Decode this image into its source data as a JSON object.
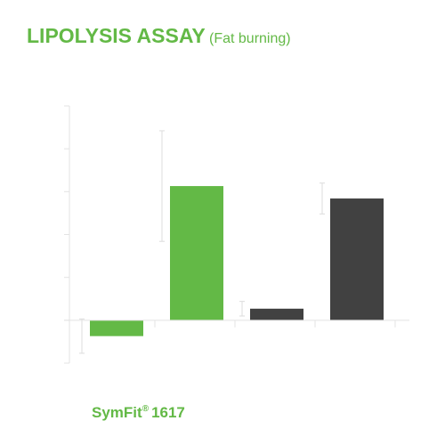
{
  "chart_data": {
    "type": "bar",
    "title": "LIPOLYSIS ASSAY",
    "subtitle": "(Fat burning)",
    "values": [
      -0.37,
      3.13,
      0.27,
      2.84
    ],
    "errors": [
      0.4,
      1.29,
      0.17,
      0.36
    ],
    "colors": [
      "#63b946",
      "#63b946",
      "#414141",
      "#414141"
    ],
    "ylim": [
      -1,
      5
    ],
    "yticks": [
      -1,
      0,
      1,
      2,
      3,
      4,
      5
    ]
  },
  "footer": {
    "brand": "SymFit",
    "mark": "®",
    "model": "1617"
  }
}
